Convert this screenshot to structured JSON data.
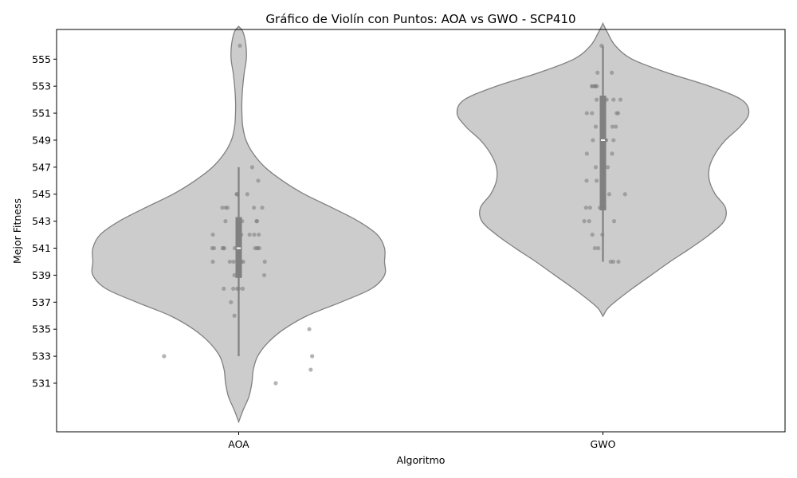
{
  "chart_data": {
    "type": "violin",
    "title": "Gráfico de Violín con Puntos: AOA vs GWO - SCP410",
    "xlabel": "Algoritmo",
    "ylabel": "Mejor Fitness",
    "categories": [
      "AOA",
      "GWO"
    ],
    "ylim": [
      527.4,
      557.2
    ],
    "yticks": [
      531,
      533,
      535,
      537,
      539,
      541,
      543,
      545,
      547,
      549,
      551,
      553,
      555
    ],
    "grid": false,
    "colors": {
      "violin_fill": "#cccccc",
      "violin_edge": "#808080",
      "box": "#808080",
      "median": "#ffffff",
      "points": "#808080"
    },
    "series": [
      {
        "category": "AOA",
        "box": {
          "whisker_low": 533,
          "q1": 538.8,
          "median": 541,
          "q3": 543.3,
          "whisker_high": 547
        },
        "density": [
          [
            528.2,
            0.002
          ],
          [
            529,
            0.03
          ],
          [
            530,
            0.07
          ],
          [
            531,
            0.09
          ],
          [
            532,
            0.1
          ],
          [
            533,
            0.13
          ],
          [
            534,
            0.2
          ],
          [
            535,
            0.31
          ],
          [
            536,
            0.47
          ],
          [
            537,
            0.7
          ],
          [
            538,
            0.91
          ],
          [
            539,
            1.0
          ],
          [
            540,
            1.0
          ],
          [
            541,
            1.0
          ],
          [
            542,
            0.95
          ],
          [
            543,
            0.82
          ],
          [
            544,
            0.64
          ],
          [
            545,
            0.45
          ],
          [
            546,
            0.3
          ],
          [
            547,
            0.18
          ],
          [
            548,
            0.1
          ],
          [
            549,
            0.05
          ],
          [
            550,
            0.028
          ],
          [
            551,
            0.022
          ],
          [
            552,
            0.022
          ],
          [
            553,
            0.028
          ],
          [
            554,
            0.038
          ],
          [
            555,
            0.052
          ],
          [
            556,
            0.05
          ],
          [
            557,
            0.03
          ],
          [
            557.4,
            0.002
          ]
        ],
        "points": [
          [
            556,
            0.04
          ],
          [
            547,
            0.47
          ],
          [
            546,
            0.68
          ],
          [
            545,
            -0.07
          ],
          [
            545,
            -0.06
          ],
          [
            545,
            0.3
          ],
          [
            544,
            -0.57
          ],
          [
            544,
            -0.45
          ],
          [
            544,
            -0.39
          ],
          [
            544,
            0.53
          ],
          [
            544,
            0.82
          ],
          [
            543,
            -0.46
          ],
          [
            543,
            0.12
          ],
          [
            543,
            0.62
          ],
          [
            543,
            0.64
          ],
          [
            542,
            -0.9
          ],
          [
            542,
            0.03
          ],
          [
            542,
            0.09
          ],
          [
            542,
            0.38
          ],
          [
            542,
            0.54
          ],
          [
            542,
            0.7
          ],
          [
            541,
            -0.92
          ],
          [
            541,
            -0.86
          ],
          [
            541,
            -0.56
          ],
          [
            541,
            -0.54
          ],
          [
            541,
            -0.5
          ],
          [
            541,
            -0.14
          ],
          [
            541,
            0.57
          ],
          [
            541,
            0.64
          ],
          [
            541,
            0.66
          ],
          [
            541,
            0.72
          ],
          [
            540,
            -0.9
          ],
          [
            540,
            -0.31
          ],
          [
            540,
            -0.18
          ],
          [
            540,
            0.09
          ],
          [
            540,
            0.16
          ],
          [
            540,
            0.91
          ],
          [
            539,
            -0.15
          ],
          [
            539,
            0.89
          ],
          [
            538,
            -0.52
          ],
          [
            538,
            -0.19
          ],
          [
            538,
            -0.05
          ],
          [
            538,
            0.0
          ],
          [
            538,
            0.14
          ],
          [
            537,
            -0.27
          ],
          [
            536,
            -0.15
          ],
          [
            535,
            2.46
          ],
          [
            533,
            -2.6
          ],
          [
            533,
            2.56
          ],
          [
            532,
            2.51
          ],
          [
            531,
            1.29
          ]
        ]
      },
      {
        "category": "GWO",
        "box": {
          "whisker_low": 540,
          "q1": 543.8,
          "median": 549,
          "q3": 552.3,
          "whisker_high": 556
        },
        "density": [
          [
            536,
            0.002
          ],
          [
            536.5,
            0.03
          ],
          [
            537,
            0.08
          ],
          [
            538,
            0.2
          ],
          [
            539,
            0.33
          ],
          [
            540,
            0.46
          ],
          [
            541,
            0.6
          ],
          [
            542,
            0.73
          ],
          [
            543,
            0.83
          ],
          [
            544,
            0.84
          ],
          [
            545,
            0.77
          ],
          [
            546,
            0.73
          ],
          [
            547,
            0.73
          ],
          [
            548,
            0.77
          ],
          [
            549,
            0.84
          ],
          [
            550,
            0.94
          ],
          [
            551,
            1.0
          ],
          [
            552,
            0.95
          ],
          [
            553,
            0.73
          ],
          [
            554,
            0.44
          ],
          [
            555,
            0.2
          ],
          [
            556,
            0.085
          ],
          [
            557,
            0.03
          ],
          [
            557.6,
            0.002
          ]
        ],
        "points": [
          [
            556,
            -0.05
          ],
          [
            554,
            -0.19
          ],
          [
            554,
            0.31
          ],
          [
            553,
            -0.38
          ],
          [
            553,
            -0.38
          ],
          [
            553,
            -0.27
          ],
          [
            553,
            -0.27
          ],
          [
            553,
            -0.27
          ],
          [
            553,
            -0.21
          ],
          [
            552,
            -0.22
          ],
          [
            552,
            -0.03
          ],
          [
            552,
            0.07
          ],
          [
            552,
            0.13
          ],
          [
            552,
            0.37
          ],
          [
            552,
            0.61
          ],
          [
            551,
            -0.56
          ],
          [
            551,
            -0.38
          ],
          [
            551,
            0.0
          ],
          [
            551,
            0.48
          ],
          [
            551,
            0.53
          ],
          [
            550,
            -0.25
          ],
          [
            550,
            -0.01
          ],
          [
            550,
            0.33
          ],
          [
            550,
            0.45
          ],
          [
            549,
            -0.35
          ],
          [
            549,
            0.1
          ],
          [
            549,
            0.11
          ],
          [
            549,
            0.37
          ],
          [
            548,
            -0.56
          ],
          [
            548,
            0.32
          ],
          [
            547,
            -0.25
          ],
          [
            547,
            0.17
          ],
          [
            546,
            -0.57
          ],
          [
            546,
            -0.22
          ],
          [
            545,
            0.22
          ],
          [
            545,
            0.77
          ],
          [
            544,
            -0.59
          ],
          [
            544,
            -0.45
          ],
          [
            544,
            -0.11
          ],
          [
            544,
            0.05
          ],
          [
            543,
            -0.65
          ],
          [
            543,
            -0.48
          ],
          [
            543,
            0.39
          ],
          [
            542,
            -0.37
          ],
          [
            542,
            -0.02
          ],
          [
            541,
            -0.28
          ],
          [
            541,
            -0.16
          ],
          [
            540,
            0.27
          ],
          [
            540,
            0.36
          ],
          [
            540,
            0.54
          ]
        ]
      }
    ]
  }
}
